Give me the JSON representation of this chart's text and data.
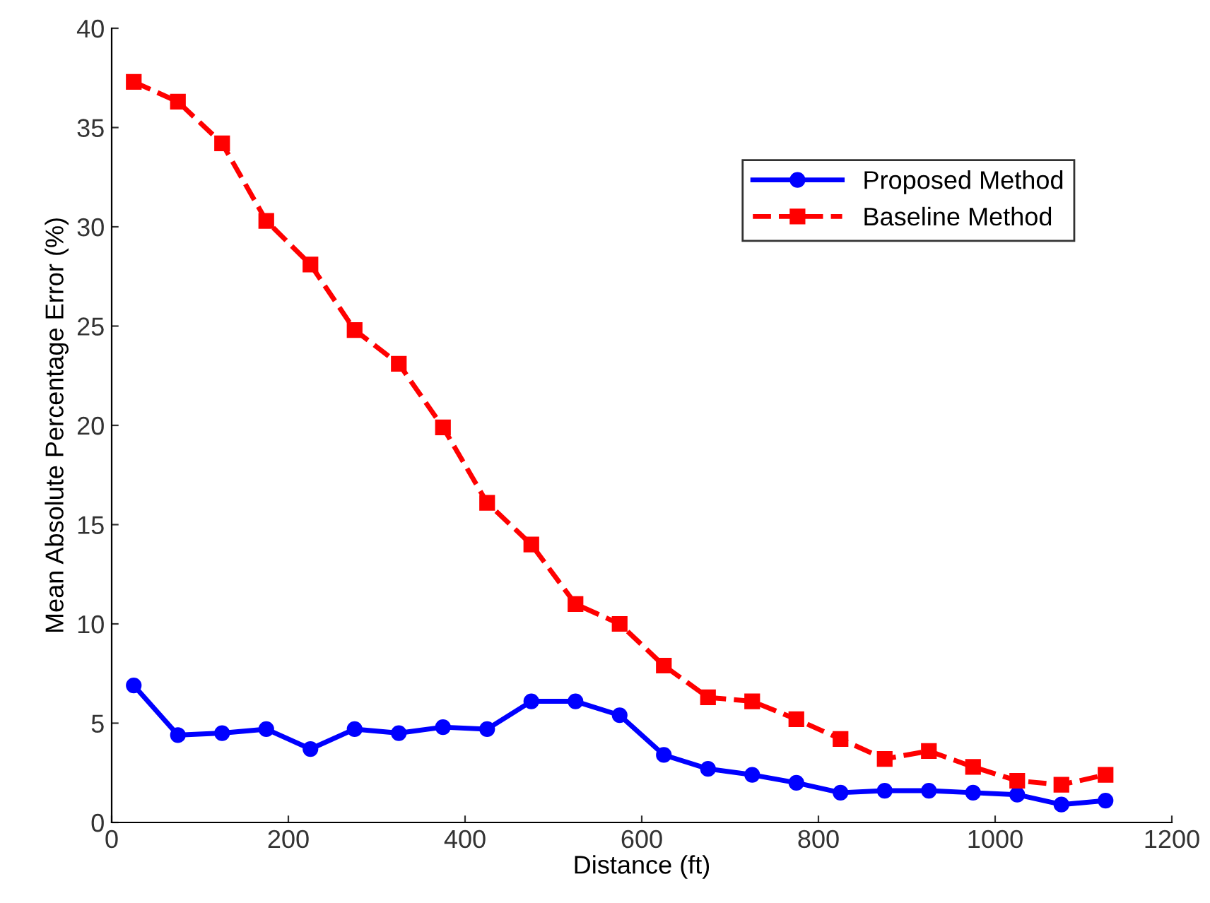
{
  "chart_data": {
    "type": "line",
    "xlabel": "Distance (ft)",
    "ylabel": "Mean Absolute Percentage Error (%)",
    "x": [
      25,
      75,
      125,
      175,
      225,
      275,
      325,
      375,
      425,
      475,
      525,
      575,
      625,
      675,
      725,
      775,
      825,
      875,
      925,
      975,
      1025,
      1075,
      1125
    ],
    "series": [
      {
        "name": "Proposed Method",
        "color": "#0000ff",
        "marker": "circle",
        "line_style": "solid",
        "values": [
          6.9,
          4.4,
          4.5,
          4.7,
          3.7,
          4.7,
          4.5,
          4.8,
          4.7,
          6.1,
          6.1,
          5.4,
          3.4,
          2.7,
          2.4,
          2.0,
          1.5,
          1.6,
          1.6,
          1.5,
          1.4,
          0.9,
          1.1
        ]
      },
      {
        "name": "Baseline Method",
        "color": "#ff0000",
        "marker": "square",
        "line_style": "dashed",
        "values": [
          37.3,
          36.3,
          34.2,
          30.3,
          28.1,
          24.8,
          23.1,
          19.9,
          16.1,
          14.0,
          11.0,
          10.0,
          7.9,
          6.3,
          6.1,
          5.2,
          4.2,
          3.2,
          3.6,
          2.8,
          2.1,
          1.9,
          2.4
        ]
      }
    ],
    "xlim": [
      0,
      1200
    ],
    "xticks": [
      0,
      200,
      400,
      600,
      800,
      1000,
      1200
    ],
    "ylim": [
      0,
      40
    ],
    "yticks": [
      0,
      5,
      10,
      15,
      20,
      25,
      30,
      35,
      40
    ],
    "grid": false,
    "legend": "top right"
  }
}
